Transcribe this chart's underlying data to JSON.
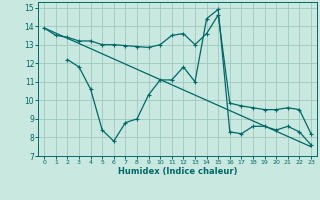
{
  "bg_color": "#c8e8e0",
  "grid_color": "#a0c8c0",
  "line_color": "#006868",
  "xlabel": "Humidex (Indice chaleur)",
  "xlim": [
    -0.5,
    23.5
  ],
  "ylim": [
    7,
    15.3
  ],
  "yticks": [
    7,
    8,
    9,
    10,
    11,
    12,
    13,
    14,
    15
  ],
  "xticks": [
    0,
    1,
    2,
    3,
    4,
    5,
    6,
    7,
    8,
    9,
    10,
    11,
    12,
    13,
    14,
    15,
    16,
    17,
    18,
    19,
    20,
    21,
    22,
    23
  ],
  "line1_x": [
    0,
    1,
    2,
    3,
    4,
    5,
    6,
    7,
    8,
    9,
    10,
    11,
    12,
    13,
    14,
    15,
    16,
    17,
    18,
    19,
    20,
    21,
    22,
    23
  ],
  "line1_y": [
    13.9,
    13.5,
    13.4,
    13.2,
    13.2,
    13.0,
    13.0,
    12.95,
    12.9,
    12.85,
    13.0,
    13.5,
    13.6,
    13.0,
    13.6,
    14.6,
    9.85,
    9.7,
    9.6,
    9.5,
    9.5,
    9.6,
    9.5,
    8.2
  ],
  "line2_x": [
    2,
    3,
    4,
    5,
    6,
    7,
    8,
    9,
    10,
    11,
    12,
    13,
    14,
    15,
    16,
    17,
    18,
    19,
    20,
    21,
    22,
    23
  ],
  "line2_y": [
    12.2,
    11.8,
    10.6,
    8.4,
    7.8,
    8.8,
    9.0,
    10.3,
    11.1,
    11.1,
    11.8,
    11.0,
    14.4,
    14.9,
    8.3,
    8.2,
    8.6,
    8.6,
    8.4,
    8.6,
    8.3,
    7.6
  ],
  "line3_x": [
    0,
    23
  ],
  "line3_y": [
    13.9,
    7.5
  ]
}
